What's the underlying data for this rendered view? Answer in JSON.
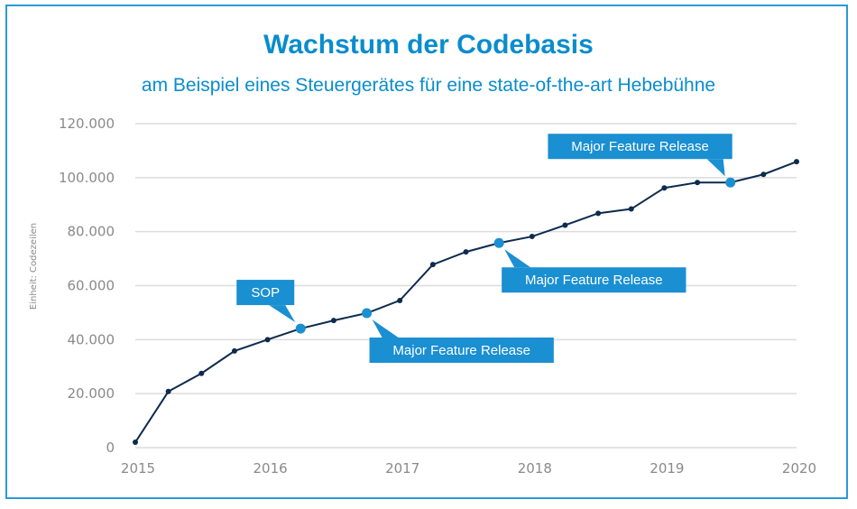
{
  "chart_data": {
    "type": "line",
    "title": "Wachstum der Codebasis",
    "subtitle": "am Beispiel eines Steuergerätes für eine state-of-the-art Hebebühne",
    "xlabel": "",
    "ylabel": "Einheit: Codezeilen",
    "ylim": [
      0,
      120000
    ],
    "xlim": [
      2015,
      2020
    ],
    "grid": true,
    "y_ticks": [
      {
        "value": 0,
        "label": "0"
      },
      {
        "value": 20000,
        "label": "20.000"
      },
      {
        "value": 40000,
        "label": "40.000"
      },
      {
        "value": 60000,
        "label": "60.000"
      },
      {
        "value": 80000,
        "label": "80.000"
      },
      {
        "value": 100000,
        "label": "100.000"
      },
      {
        "value": 120000,
        "label": "120.000"
      }
    ],
    "x_ticks": [
      {
        "value": 2015,
        "label": "2015"
      },
      {
        "value": 2016,
        "label": "2016"
      },
      {
        "value": 2017,
        "label": "2017"
      },
      {
        "value": 2018,
        "label": "2018"
      },
      {
        "value": 2019,
        "label": "2019"
      },
      {
        "value": 2020,
        "label": "2020"
      }
    ],
    "series": [
      {
        "name": "Codezeilen",
        "color": "#0d2b4e",
        "x": [
          2015.0,
          2015.25,
          2015.5,
          2015.75,
          2016.0,
          2016.25,
          2016.5,
          2016.75,
          2017.0,
          2017.25,
          2017.5,
          2017.75,
          2018.0,
          2018.25,
          2018.5,
          2018.75,
          2019.0,
          2019.25,
          2019.5,
          2019.75,
          2020.0
        ],
        "values": [
          2000,
          20800,
          27500,
          35800,
          40000,
          44100,
          47100,
          49800,
          54500,
          67800,
          72500,
          75800,
          78200,
          82400,
          86800,
          88400,
          96200,
          98200,
          98200,
          101200,
          105900
        ]
      }
    ],
    "highlight_color": "#1a8fd1",
    "annotations": [
      {
        "label": "SOP",
        "point_index": 5,
        "placement": "above-left"
      },
      {
        "label": "Major Feature Release",
        "point_index": 7,
        "placement": "below-right"
      },
      {
        "label": "Major Feature Release",
        "point_index": 11,
        "placement": "below-right"
      },
      {
        "label": "Major Feature Release",
        "point_index": 18,
        "placement": "above-left"
      }
    ]
  }
}
